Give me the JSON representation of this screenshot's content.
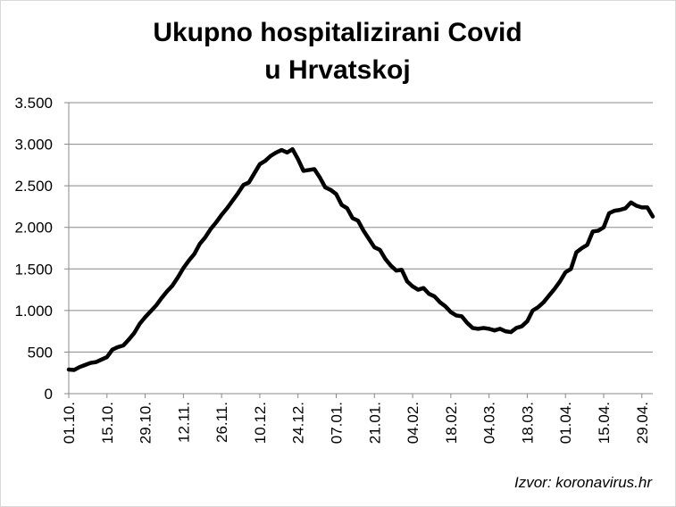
{
  "chart_data": {
    "type": "line",
    "title": [
      "Ukupno hospitalizirani  Covid",
      "u Hrvatskoj"
    ],
    "source": "Izvor:  koronavirus.hr",
    "categories": [
      "01.10.",
      null,
      null,
      null,
      null,
      null,
      null,
      "15.10.",
      null,
      null,
      null,
      null,
      null,
      null,
      "29.10.",
      null,
      null,
      null,
      null,
      null,
      null,
      "12.11.",
      null,
      null,
      null,
      null,
      null,
      null,
      "26.11.",
      null,
      null,
      null,
      null,
      null,
      null,
      "10.12.",
      null,
      null,
      null,
      null,
      null,
      null,
      "24.12.",
      null,
      null,
      null,
      null,
      null,
      null,
      "07.01.",
      null,
      null,
      null,
      null,
      null,
      null,
      "21.01.",
      null,
      null,
      null,
      null,
      null,
      null,
      "04.02.",
      null,
      null,
      null,
      null,
      null,
      null,
      "18.02.",
      null,
      null,
      null,
      null,
      null,
      null,
      "04.03.",
      null,
      null,
      null,
      null,
      null,
      null,
      "18.03.",
      null,
      null,
      null,
      null,
      null,
      null,
      "01.04.",
      null,
      null,
      null,
      null,
      null,
      null,
      "15.04.",
      null,
      null,
      null,
      null,
      null,
      null,
      "29.04.",
      null,
      null
    ],
    "series": [
      {
        "color": "#000000",
        "values": [
          290,
          285,
          320,
          345,
          370,
          380,
          410,
          440,
          530,
          560,
          580,
          650,
          730,
          840,
          920,
          990,
          1060,
          1150,
          1230,
          1300,
          1400,
          1510,
          1600,
          1680,
          1800,
          1880,
          1980,
          2060,
          2150,
          2230,
          2320,
          2410,
          2510,
          2540,
          2650,
          2760,
          2800,
          2860,
          2900,
          2930,
          2900,
          2940,
          2820,
          2680,
          2690,
          2700,
          2600,
          2480,
          2450,
          2400,
          2270,
          2230,
          2110,
          2080,
          1960,
          1860,
          1760,
          1730,
          1620,
          1540,
          1480,
          1490,
          1350,
          1290,
          1250,
          1270,
          1200,
          1170,
          1100,
          1050,
          980,
          940,
          930,
          850,
          790,
          780,
          790,
          780,
          760,
          780,
          750,
          740,
          790,
          810,
          870,
          1000,
          1040,
          1100,
          1180,
          1260,
          1350,
          1460,
          1500,
          1700,
          1750,
          1790,
          1950,
          1960,
          2000,
          2170,
          2200,
          2210,
          2230,
          2300,
          2260,
          2240,
          2240,
          2130
        ]
      }
    ],
    "ylim": [
      0,
      3500
    ],
    "yticks": [
      0,
      {
        "value": 500,
        "label": "500"
      },
      {
        "value": 1000,
        "label": "1.000"
      },
      {
        "value": 1500,
        "label": "1.500"
      },
      {
        "value": 2000,
        "label": "2.000"
      },
      {
        "value": 2500,
        "label": "2.500"
      },
      {
        "value": 3000,
        "label": "3.000"
      },
      {
        "value": 3500,
        "label": "3.500"
      }
    ],
    "grid": true
  }
}
